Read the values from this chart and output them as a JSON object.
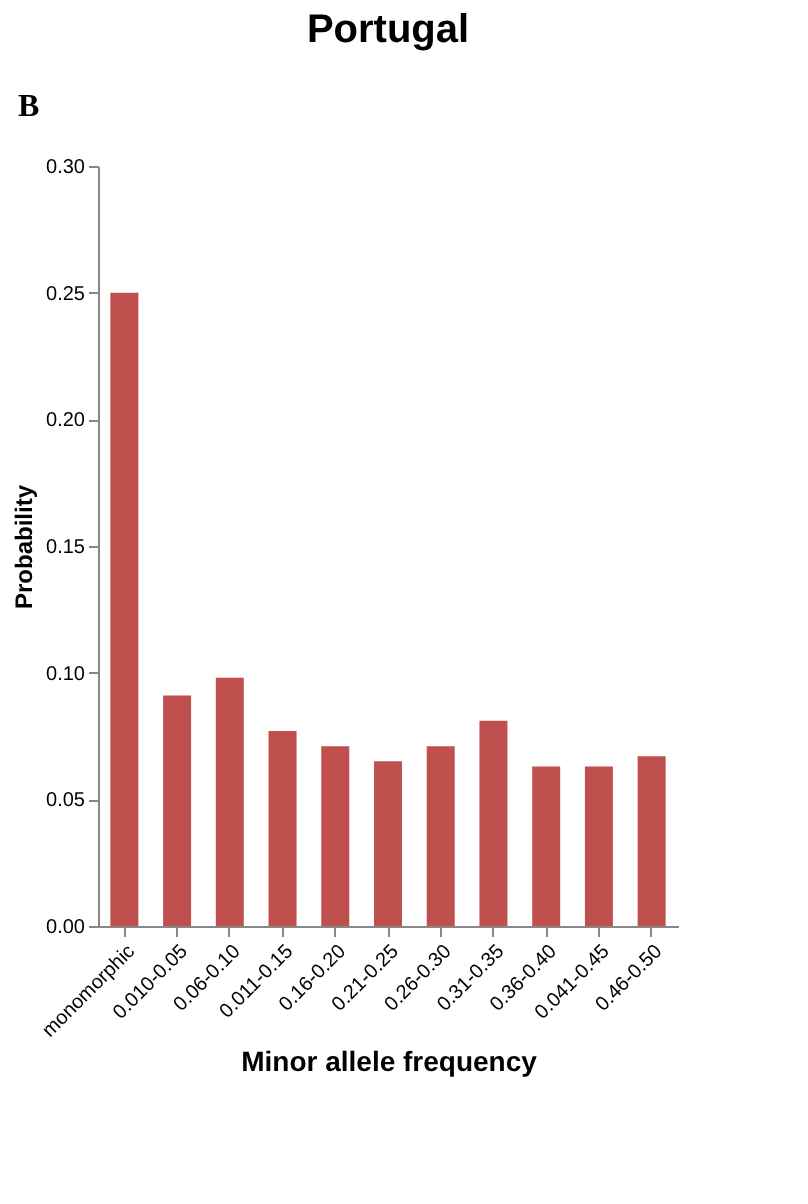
{
  "chart_data": {
    "type": "bar",
    "title": "Portugal",
    "xlabel": "Minor allele frequency",
    "ylabel": "Probability",
    "annotations": [
      "B"
    ],
    "categories": [
      "monomorphic",
      "0.010-0.05",
      "0.06-0.10",
      "0.011-0.15",
      "0.16-0.20",
      "0.21-0.25",
      "0.26-0.30",
      "0.31-0.35",
      "0.36-0.40",
      "0.041-0.45",
      "0.46-0.50"
    ],
    "values": [
      0.25,
      0.091,
      0.098,
      0.077,
      0.071,
      0.065,
      0.071,
      0.081,
      0.063,
      0.063,
      0.067
    ],
    "color": "#c0504d",
    "ylim": [
      0,
      0.3
    ],
    "yticks": [
      {
        "value": 0,
        "label": "0.00"
      },
      {
        "value": 0.05,
        "label": "0.05"
      },
      {
        "value": 0.1,
        "label": "0.10"
      },
      {
        "value": 0.15,
        "label": "0.15"
      },
      {
        "value": 0.2,
        "label": "0.20"
      },
      {
        "value": 0.25,
        "label": "0.25"
      },
      {
        "value": 0.3,
        "label": "0.30"
      }
    ],
    "grid": false
  }
}
